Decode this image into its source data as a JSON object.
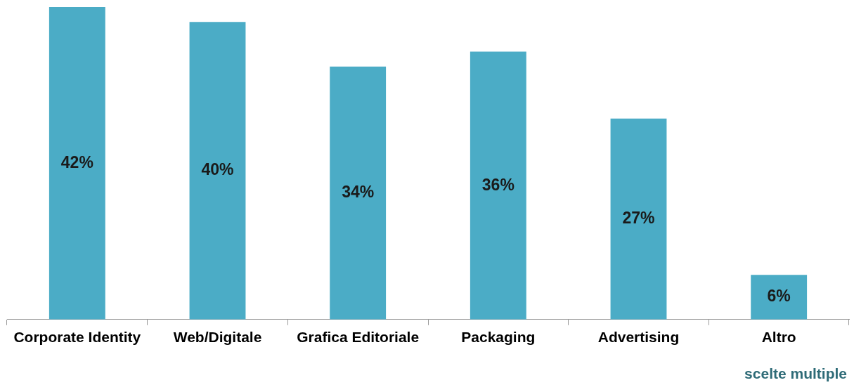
{
  "chart_data": {
    "type": "bar",
    "relative": false,
    "categories": [
      "Corporate Identity",
      "Web/Digitale",
      "Grafica Editoriale",
      "Packaging",
      "Advertising",
      "Altro"
    ],
    "values": [
      42,
      40,
      34,
      36,
      27,
      6
    ],
    "value_labels": [
      "42%",
      "40%",
      "34%",
      "36%",
      "27%",
      "6%"
    ],
    "color": "#4bacc6",
    "grid": false,
    "legend": false,
    "annotations": [
      "scelte multiple"
    ]
  }
}
